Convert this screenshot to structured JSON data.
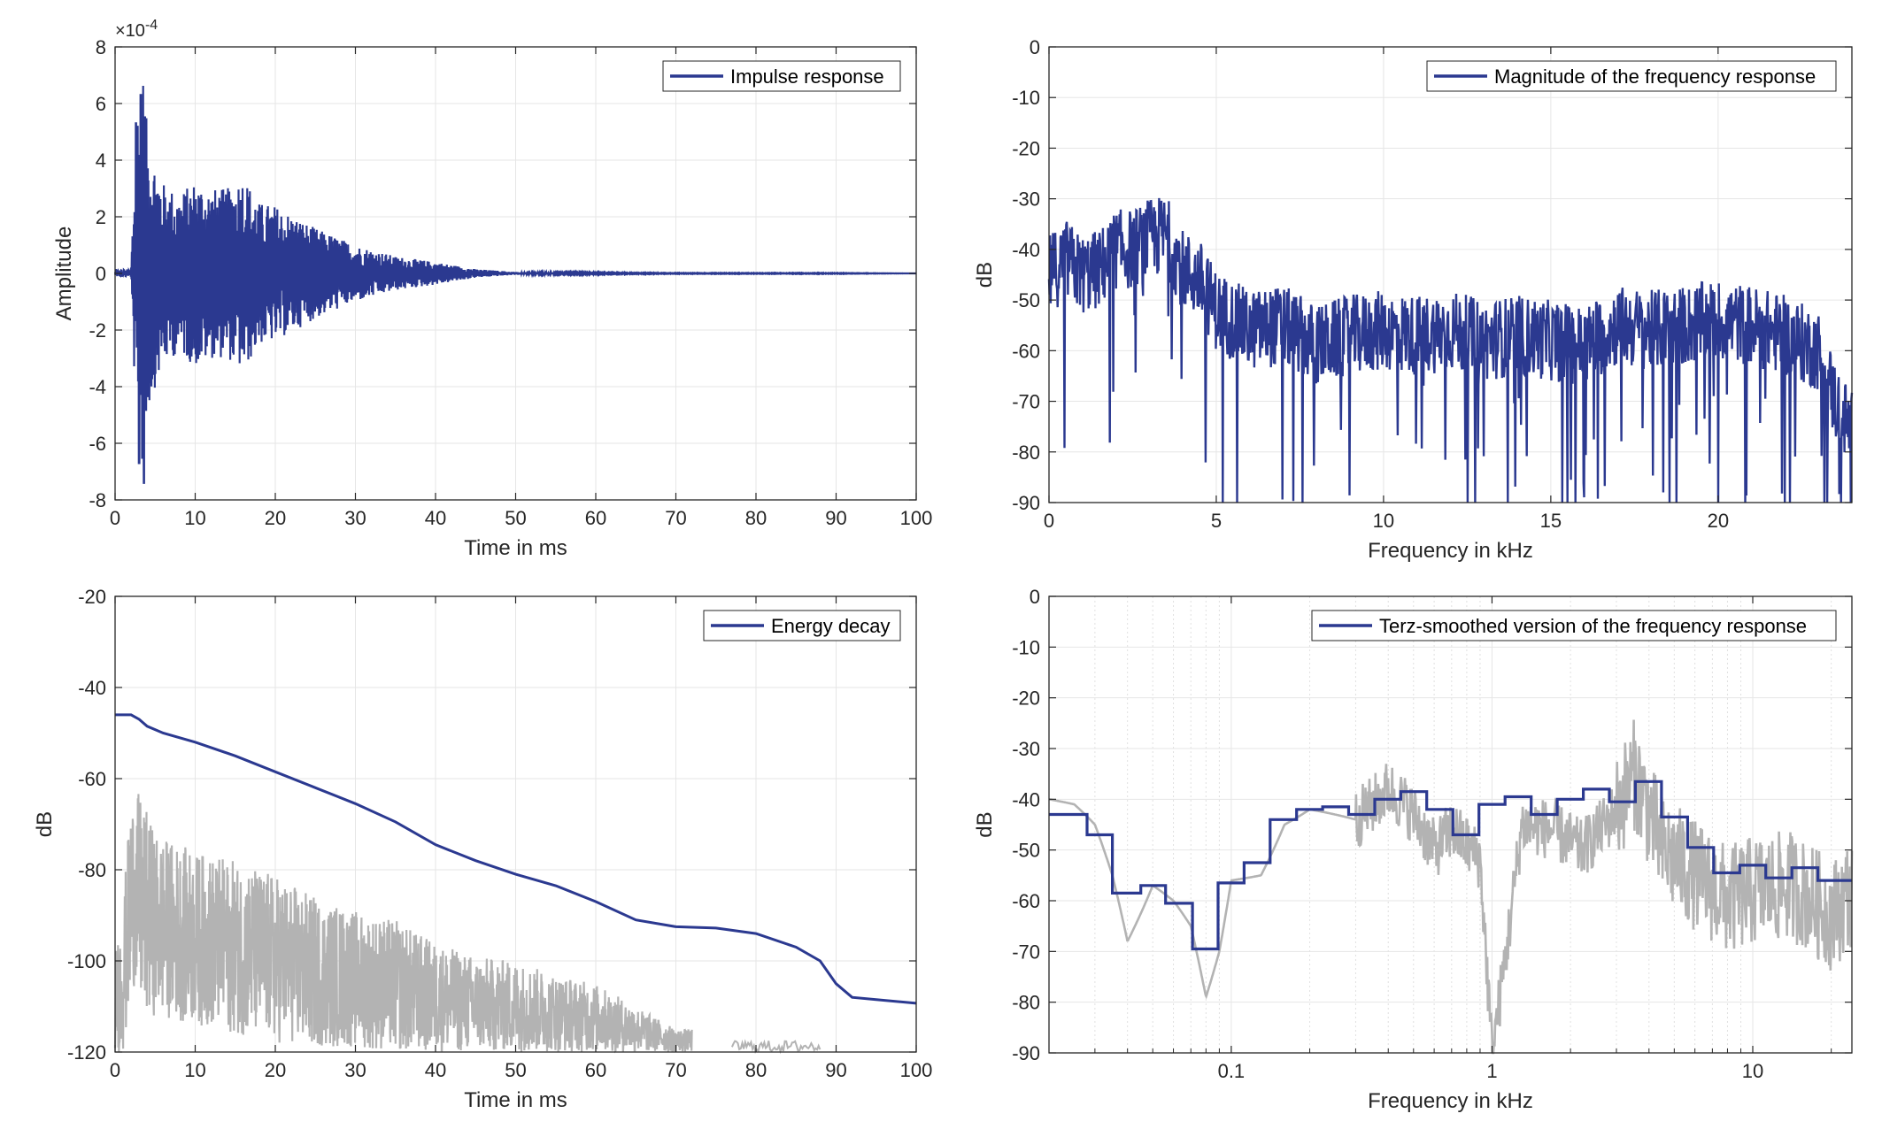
{
  "colors": {
    "series": "#2b3990",
    "gray": "#b3b3b3",
    "grid": "#e6e6e6",
    "axis": "#262626"
  },
  "chart_data": [
    {
      "type": "line",
      "xlabel": "Time in ms",
      "ylabel": "Amplitude",
      "exponent_label": "×10",
      "exponent_power": "-4",
      "xlim": [
        0,
        100
      ],
      "ylim": [
        -8,
        8
      ],
      "xticks": [
        0,
        10,
        20,
        30,
        40,
        50,
        60,
        70,
        80,
        90,
        100
      ],
      "yticks": [
        -8,
        -6,
        -4,
        -2,
        0,
        2,
        4,
        6,
        8
      ],
      "grid": true,
      "legend_position": "top-right",
      "series": [
        {
          "name": "Impulse response",
          "x": [
            0,
            1,
            2,
            2.6,
            3.0,
            3.2,
            3.6,
            4,
            5,
            6,
            8,
            10,
            12,
            14,
            16,
            18,
            20,
            25,
            30,
            35,
            40,
            45,
            50,
            55,
            60,
            70,
            80,
            90,
            100
          ],
          "y": [
            0.0,
            0.1,
            -0.3,
            5.3,
            -6.7,
            6.3,
            -7.4,
            5.0,
            -4.0,
            3.2,
            -2.8,
            3.3,
            -3.0,
            3.0,
            -3.5,
            2.5,
            -2.4,
            1.6,
            -1.0,
            0.6,
            0.4,
            0.15,
            0.05,
            0.03,
            0.02,
            0.01,
            0.01,
            0.01,
            0.0
          ]
        }
      ]
    },
    {
      "type": "line",
      "xlabel": "Frequency in kHz",
      "ylabel": "dB",
      "xlim": [
        0,
        24
      ],
      "ylim": [
        -90,
        0
      ],
      "xticks": [
        0,
        5,
        10,
        15,
        20
      ],
      "yticks": [
        0,
        -10,
        -20,
        -30,
        -40,
        -50,
        -60,
        -70,
        -80,
        -90
      ],
      "grid": true,
      "legend_position": "top-right",
      "series": [
        {
          "name": "Magnitude of the frequency response",
          "x": [
            0,
            0.5,
            1,
            1.5,
            2,
            2.5,
            3,
            3.5,
            4,
            4.5,
            5,
            6,
            7,
            8,
            9,
            10,
            11,
            12,
            13,
            14,
            15,
            16,
            17,
            18,
            19,
            20,
            21,
            22,
            23,
            23.5,
            24
          ],
          "y": [
            -45,
            -42,
            -45,
            -44,
            -40,
            -40,
            -38,
            -37,
            -44,
            -46,
            -52,
            -56,
            -55,
            -59,
            -57,
            -56,
            -57,
            -56,
            -58,
            -57,
            -58,
            -59,
            -55,
            -56,
            -55,
            -54,
            -55,
            -57,
            -60,
            -70,
            -76
          ]
        }
      ]
    },
    {
      "type": "line",
      "xlabel": "Time in ms",
      "ylabel": "dB",
      "xlim": [
        0,
        100
      ],
      "ylim": [
        -120,
        -20
      ],
      "xticks": [
        0,
        10,
        20,
        30,
        40,
        50,
        60,
        70,
        80,
        90,
        100
      ],
      "yticks": [
        -20,
        -40,
        -60,
        -80,
        -100,
        -120
      ],
      "grid": true,
      "legend_position": "top-right",
      "series": [
        {
          "name": "Energy decay",
          "x": [
            0,
            2,
            3,
            4,
            6,
            10,
            15,
            20,
            25,
            30,
            35,
            40,
            45,
            50,
            55,
            60,
            65,
            70,
            75,
            80,
            85,
            88,
            90,
            92,
            95,
            100
          ],
          "y": [
            -46,
            -46,
            -47,
            -48.5,
            -50,
            -52,
            -55,
            -58.5,
            -62,
            -65.5,
            -69.5,
            -74.5,
            -78,
            -81,
            -83.5,
            -87,
            -91,
            -92.5,
            -92.8,
            -94,
            -97,
            -100,
            -105,
            -108,
            -108.5,
            -109.3
          ]
        },
        {
          "x": [
            0,
            1,
            2,
            2.5,
            3,
            5,
            10,
            15,
            20,
            25,
            30,
            35,
            40,
            45,
            50,
            55,
            60,
            65,
            70
          ],
          "y": [
            -103,
            -92,
            -65,
            -72,
            -63,
            -84,
            -87,
            -90,
            -92,
            -95,
            -100,
            -100,
            -103,
            -106,
            -108,
            -109,
            -111,
            -113,
            -118
          ],
          "envelope_low": [
            -120,
            -120,
            -110,
            -104,
            -112,
            -112,
            -114,
            -116,
            -118,
            -119,
            -119,
            -120,
            -120,
            -120,
            -120,
            -120,
            -120,
            -120,
            -120
          ],
          "envelope_high": [
            -98,
            -88,
            -63,
            -65,
            -63,
            -72,
            -76,
            -78,
            -81,
            -86,
            -89,
            -91,
            -96,
            -99,
            -100,
            -103,
            -105,
            -110,
            -115
          ],
          "color": "gray"
        }
      ]
    },
    {
      "type": "line",
      "xlabel": "Frequency in kHz",
      "ylabel": "dB",
      "x_scale": "log",
      "xlim": [
        0.02,
        24
      ],
      "ylim": [
        -90,
        0
      ],
      "xticks": [
        0.1,
        1,
        10
      ],
      "xtick_labels": [
        "0.1",
        "1",
        "10"
      ],
      "yticks": [
        0,
        -10,
        -20,
        -30,
        -40,
        -50,
        -60,
        -70,
        -80,
        -90
      ],
      "grid": true,
      "legend_position": "top-right",
      "series": [
        {
          "name": "Terz-smoothed version of the frequency response",
          "step_edges": [
            0.02,
            0.028,
            0.035,
            0.045,
            0.056,
            0.071,
            0.089,
            0.112,
            0.141,
            0.178,
            0.224,
            0.282,
            0.355,
            0.447,
            0.562,
            0.708,
            0.891,
            1.122,
            1.413,
            1.778,
            2.239,
            2.818,
            3.548,
            4.467,
            5.623,
            7.079,
            8.913,
            11.22,
            14.13,
            17.78,
            24
          ],
          "values": [
            -43,
            -47,
            -58.5,
            -57,
            -60.5,
            -69.5,
            -56.5,
            -52.5,
            -44,
            -42,
            -41.5,
            -43,
            -40,
            -38.5,
            -42,
            -47,
            -41,
            -39.5,
            -43,
            -40,
            -38,
            -40.5,
            -36.5,
            -43.5,
            -49.5,
            -54.5,
            -53,
            -55.5,
            -53.5,
            -56
          ]
        },
        {
          "x": [
            0.02,
            0.025,
            0.03,
            0.035,
            0.04,
            0.05,
            0.06,
            0.07,
            0.08,
            0.09,
            0.1,
            0.13,
            0.16,
            0.2,
            0.3,
            0.4,
            0.5,
            0.6,
            0.7,
            0.9,
            1.0,
            1.3,
            1.7,
            2.2,
            3.0,
            3.5,
            4.5,
            6,
            8,
            10,
            14,
            20,
            24
          ],
          "y": [
            -40,
            -41,
            -45,
            -55,
            -68,
            -57,
            -60,
            -65,
            -79,
            -70,
            -56,
            -55,
            -45,
            -42,
            -44,
            -38,
            -43,
            -50,
            -46,
            -52,
            -90,
            -45,
            -46,
            -50,
            -42,
            -35,
            -50,
            -55,
            -60,
            -58,
            -57,
            -63,
            -58
          ],
          "color": "gray"
        }
      ]
    }
  ]
}
